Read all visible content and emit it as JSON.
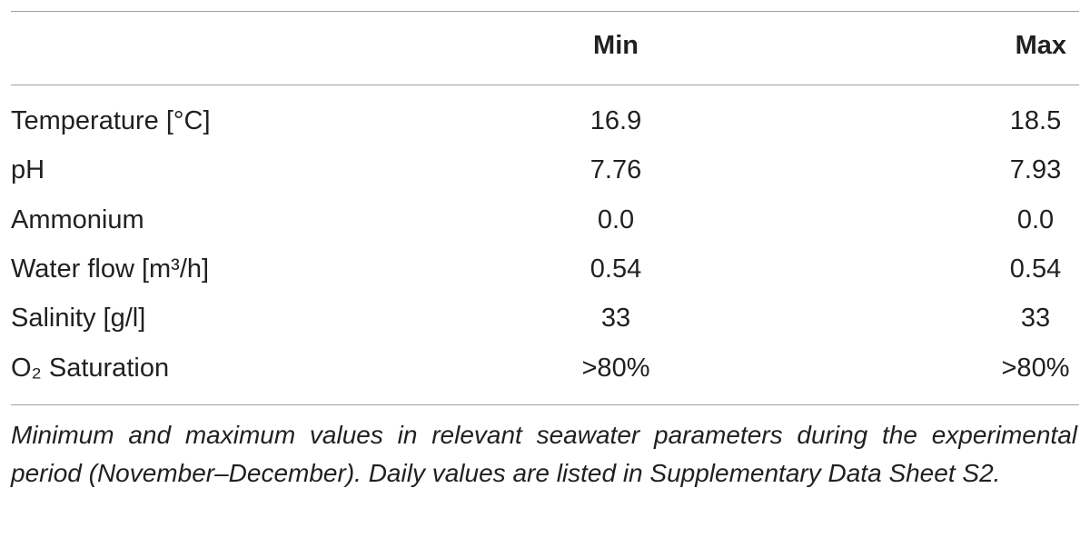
{
  "table": {
    "header": [
      "Min",
      "Max"
    ],
    "rows": [
      [
        "Temperature [°C]",
        "16.9",
        "18.5"
      ],
      [
        "pH",
        "7.76",
        "7.93"
      ],
      [
        "Ammonium",
        "0.0",
        "0.0"
      ],
      [
        "Water flow [m³/h]",
        "0.54",
        "0.54"
      ],
      [
        "Salinity [g/l]",
        "33",
        "33"
      ],
      [
        "O₂ Saturation",
        ">80%",
        ">80%"
      ]
    ],
    "caption": "Minimum and maximum values in relevant seawater parameters during the experimental period (November–December). Daily values are listed in Supplementary Data Sheet S2."
  }
}
